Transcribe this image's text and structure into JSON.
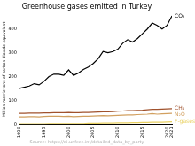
{
  "chart_data": {
    "type": "line",
    "title": "Greenhouse gases emitted in Turkey",
    "y_label": "Million metric tons of carbon dioxide equivalent",
    "source": "Source: https://di.unfccc.int/detailed_data_by_party",
    "x": [
      1990,
      1991,
      1992,
      1993,
      1994,
      1995,
      1996,
      1997,
      1998,
      1999,
      2000,
      2001,
      2002,
      2003,
      2004,
      2005,
      2006,
      2007,
      2008,
      2009,
      2010,
      2011,
      2012,
      2013,
      2014,
      2015,
      2016,
      2017,
      2018,
      2019,
      2020,
      2021
    ],
    "series": [
      {
        "name": "CO₂",
        "color": "#000000",
        "values": [
          150,
          155,
          160,
          170,
          165,
          180,
          200,
          210,
          210,
          205,
          228,
          205,
          215,
          230,
          240,
          255,
          275,
          305,
          300,
          305,
          315,
          340,
          355,
          345,
          360,
          380,
          400,
          425,
          415,
          400,
          415,
          455
        ]
      },
      {
        "name": "CH₄",
        "color": "#a0522d",
        "values": [
          45,
          45,
          46,
          46,
          46,
          47,
          47,
          48,
          48,
          48,
          49,
          48,
          48,
          49,
          49,
          50,
          51,
          52,
          52,
          53,
          54,
          55,
          56,
          56,
          57,
          58,
          60,
          62,
          62,
          63,
          64,
          65
        ]
      },
      {
        "name": "N₂O",
        "color": "#d2a060",
        "values": [
          30,
          30,
          31,
          31,
          30,
          32,
          33,
          33,
          33,
          32,
          33,
          31,
          32,
          33,
          33,
          34,
          35,
          36,
          35,
          36,
          37,
          38,
          39,
          39,
          40,
          41,
          42,
          44,
          42,
          43,
          44,
          45
        ]
      },
      {
        "name": "F-gases",
        "color": "#e8d060",
        "values": [
          1,
          1,
          1,
          1,
          1,
          1,
          2,
          2,
          2,
          2,
          2,
          2,
          2,
          2,
          3,
          3,
          3,
          4,
          4,
          4,
          5,
          5,
          5,
          6,
          6,
          7,
          7,
          8,
          8,
          8,
          9,
          10
        ]
      }
    ],
    "xlim": [
      1990,
      2021
    ],
    "xticks": [
      1990,
      1995,
      2000,
      2005,
      2010,
      2015,
      2020,
      2021
    ],
    "ylim": [
      0,
      460
    ],
    "yticks": [
      0,
      100,
      200,
      300,
      400
    ],
    "grid": false,
    "tick_labels": true
  }
}
